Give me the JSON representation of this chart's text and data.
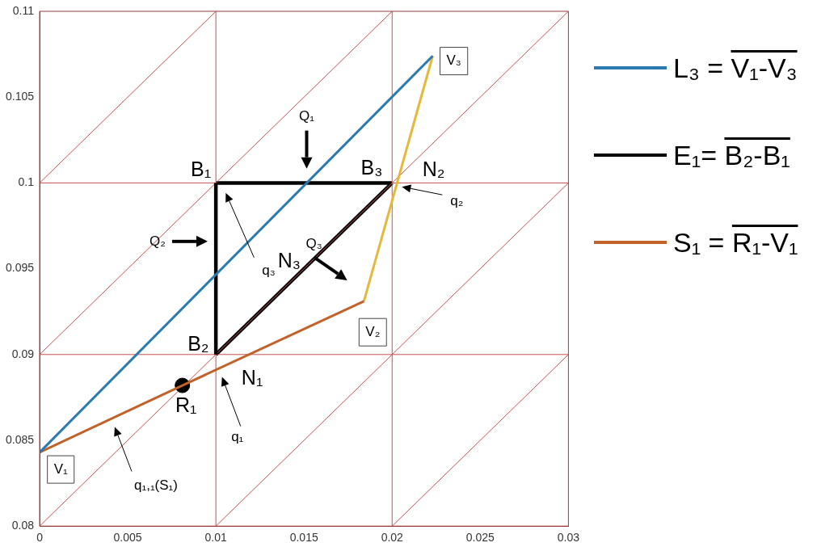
{
  "chart_data": {
    "type": "line",
    "xlim": [
      0,
      0.03
    ],
    "ylim": [
      0.08,
      0.11
    ],
    "xticks": [
      0,
      0.005,
      0.01,
      0.015,
      0.02,
      0.025,
      0.03
    ],
    "yticks": [
      0.08,
      0.085,
      0.09,
      0.095,
      0.1,
      0.105,
      0.11
    ],
    "grid": false,
    "legend": "right",
    "series": [
      {
        "name": "L₃ = V₁-V₃",
        "color": "#2a7ab0",
        "x": [
          0,
          0.0223
        ],
        "values": [
          0.0843,
          0.1074
        ]
      },
      {
        "name": "E₁= B₂-B₁",
        "color": "#000000",
        "x": [
          0.01,
          0.01
        ],
        "values": [
          0.09,
          0.1
        ]
      },
      {
        "name": "S₁ = R₁-V₁",
        "color": "#c0622a",
        "x": [
          0,
          0.0081,
          0.0184
        ],
        "values": [
          0.0843,
          0.0882,
          0.0931
        ]
      },
      {
        "color": "#e6b83a",
        "x": [
          0.0184,
          0.0223
        ],
        "values": [
          0.0931,
          0.1074
        ]
      },
      {
        "type": "scatter",
        "color": "#000000",
        "marker": "circle",
        "x": [
          0.0081
        ],
        "values": [
          0.0882
        ]
      },
      {
        "color": "#c85050",
        "x": [
          0,
          0.01
        ],
        "values": [
          0.1,
          0.11
        ]
      },
      {
        "color": "#c85050",
        "x": [
          0,
          0.02
        ],
        "values": [
          0.09,
          0.11
        ]
      },
      {
        "color": "#c85050",
        "x": [
          0,
          0.03
        ],
        "values": [
          0.08,
          0.11
        ]
      },
      {
        "color": "#c85050",
        "x": [
          0.01,
          0.03
        ],
        "values": [
          0.08,
          0.1
        ]
      },
      {
        "color": "#c85050",
        "x": [
          0.02,
          0.03
        ],
        "values": [
          0.08,
          0.09
        ]
      },
      {
        "color": "#c85050",
        "x": [
          0.01,
          0.01
        ],
        "values": [
          0.08,
          0.09
        ]
      },
      {
        "color": "#c85050",
        "x": [
          0.01,
          0.01
        ],
        "values": [
          0.1,
          0.11
        ]
      },
      {
        "color": "#c85050",
        "x": [
          0.02,
          0.02
        ],
        "values": [
          0.08,
          0.11
        ]
      },
      {
        "color": "#c85050",
        "x": [
          0,
          0.03
        ],
        "values": [
          0.09,
          0.09
        ]
      },
      {
        "color": "#c85050",
        "x": [
          0,
          0.01
        ],
        "values": [
          0.1,
          0.1
        ]
      },
      {
        "color": "#c85050",
        "x": [
          0.02,
          0.03
        ],
        "values": [
          0.1,
          0.1
        ]
      },
      {
        "color": "#000000",
        "x": [
          0.01,
          0.02
        ],
        "values": [
          0.1,
          0.1
        ]
      },
      {
        "color": "#000000",
        "x": [
          0.01,
          0.02
        ],
        "values": [
          0.09,
          0.1
        ]
      }
    ],
    "annotations": [
      {
        "text": "V₁",
        "x": 0.0012,
        "y": 0.0833
      },
      {
        "text": "V₂",
        "x": 0.0189,
        "y": 0.0913
      },
      {
        "text": "V₃",
        "x": 0.0235,
        "y": 0.1071
      },
      "B₁",
      "B₂",
      "B₃",
      "N₁",
      "N₂",
      "N₃",
      "R₁",
      "Q₁",
      "Q₂",
      "Q₃",
      "q₁",
      "q₂",
      "q₃",
      "q₁,₁(S₁)"
    ]
  }
}
